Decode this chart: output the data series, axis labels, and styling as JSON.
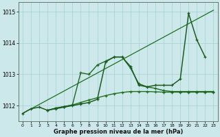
{
  "background_color": "#cce8ea",
  "grid_color": "#aad4d8",
  "xlabel": "Graphe pression niveau de la mer (hPa)",
  "xlim": [
    -0.5,
    23.5
  ],
  "ylim": [
    1011.5,
    1015.3
  ],
  "yticks": [
    1012,
    1013,
    1014,
    1015
  ],
  "xticks": [
    0,
    1,
    2,
    3,
    4,
    5,
    6,
    7,
    8,
    9,
    10,
    11,
    12,
    13,
    14,
    15,
    16,
    17,
    18,
    19,
    20,
    21,
    22,
    23
  ],
  "series": [
    {
      "name": "line1_peak",
      "x": [
        0,
        1,
        2,
        3,
        4,
        5,
        6,
        7,
        8,
        9,
        10,
        11,
        12,
        13,
        14,
        15,
        16,
        17,
        18,
        19,
        20,
        21,
        22
      ],
      "y": [
        1011.75,
        1011.9,
        1011.95,
        1011.85,
        1011.9,
        1011.95,
        1012.0,
        1012.05,
        1012.1,
        1012.2,
        1013.4,
        1013.55,
        1013.55,
        1013.25,
        1012.65,
        1012.6,
        1012.65,
        1012.65,
        1012.65,
        1012.85,
        1014.95,
        1014.1,
        1013.55
      ],
      "color": "#1a5c20",
      "linewidth": 1.1,
      "marker": "+",
      "markersize": 3.5,
      "zorder": 5
    },
    {
      "name": "line2_hump",
      "x": [
        3,
        4,
        5,
        6,
        7,
        8,
        9,
        10,
        11,
        12,
        13,
        14,
        15,
        16,
        17,
        18,
        19,
        20,
        21,
        22,
        23
      ],
      "y": [
        1011.85,
        1011.92,
        1011.97,
        1012.02,
        1013.05,
        1013.0,
        1013.3,
        1013.42,
        1013.55,
        1013.55,
        1013.2,
        1012.7,
        1012.6,
        1012.55,
        1012.48,
        1012.45,
        1012.45,
        1012.45,
        1012.45,
        1012.45,
        1012.45
      ],
      "color": "#1a6820",
      "linewidth": 1.0,
      "marker": "+",
      "markersize": 3.0,
      "zorder": 4
    },
    {
      "name": "line3_flat",
      "x": [
        3,
        4,
        5,
        6,
        7,
        8,
        9,
        10,
        11,
        12,
        13,
        14,
        15,
        16,
        17,
        18,
        19,
        20,
        21,
        22,
        23
      ],
      "y": [
        1011.85,
        1011.92,
        1011.97,
        1012.02,
        1012.1,
        1012.18,
        1012.25,
        1012.32,
        1012.38,
        1012.42,
        1012.45,
        1012.45,
        1012.45,
        1012.44,
        1012.43,
        1012.43,
        1012.43,
        1012.43,
        1012.43,
        1012.43,
        1012.43
      ],
      "color": "#207020",
      "linewidth": 1.0,
      "marker": "+",
      "markersize": 3.0,
      "zorder": 3
    },
    {
      "name": "trend_line",
      "x": [
        0,
        23
      ],
      "y": [
        1011.75,
        1015.05
      ],
      "color": "#1a7020",
      "linewidth": 0.9,
      "marker": null,
      "markersize": 0,
      "zorder": 2
    }
  ]
}
